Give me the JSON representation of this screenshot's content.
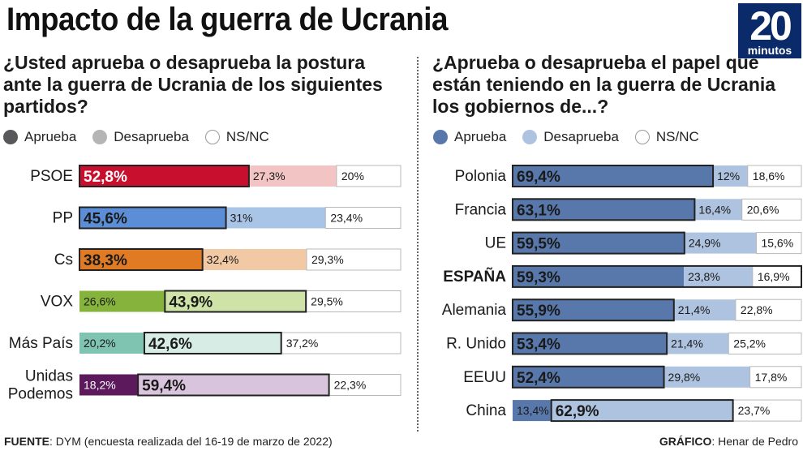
{
  "header": {
    "title": "Impacto de la guerra de Ucrania",
    "logo_number": "20",
    "logo_word": "minutos"
  },
  "colors": {
    "logo_bg": "#0a2a6a",
    "legend_left": [
      "#58585a",
      "#b5b5b5",
      "#ffffff"
    ],
    "legend_right": [
      "#5878ab",
      "#aec3e0",
      "#ffffff"
    ]
  },
  "chart_data": [
    {
      "type": "bar",
      "stacked": true,
      "orientation": "horizontal",
      "title": "¿Usted aprueba o desaprueba la postura ante la guerra de Ucrania de los siguientes partidos?",
      "legend": [
        "Aprueba",
        "Desaprueba",
        "NS/NC"
      ],
      "categories": [
        "PSOE",
        "PP",
        "Cs",
        "VOX",
        "Más País",
        "Unidas Podemos"
      ],
      "category_labels": [
        [
          "PSOE"
        ],
        [
          "PP"
        ],
        [
          "Cs"
        ],
        [
          "VOX"
        ],
        [
          "Más País"
        ],
        [
          "Unidas",
          "Podemos"
        ]
      ],
      "series": [
        {
          "name": "Aprueba",
          "values": [
            52.8,
            45.6,
            38.3,
            26.6,
            20.2,
            18.2
          ]
        },
        {
          "name": "Desaprueba",
          "values": [
            27.3,
            31,
            32.4,
            43.9,
            42.6,
            59.4
          ]
        },
        {
          "name": "NS/NC",
          "values": [
            20,
            23.4,
            29.3,
            29.5,
            37.2,
            22.3
          ]
        }
      ],
      "value_labels": [
        [
          "52,8%",
          "27,3%",
          "20%"
        ],
        [
          "45,6%",
          "31%",
          "23,4%"
        ],
        [
          "38,3%",
          "32,4%",
          "29,3%"
        ],
        [
          "26,6%",
          "43,9%",
          "29,5%"
        ],
        [
          "20,2%",
          "42,6%",
          "37,2%"
        ],
        [
          "18,2%",
          "59,4%",
          "22,3%"
        ]
      ],
      "highlight": [
        0,
        0,
        0,
        1,
        1,
        1
      ],
      "party_colors": [
        [
          "#c8102e",
          "#f2c4c4",
          "#ffffff"
        ],
        [
          "#5b8ed6",
          "#a8c4e6",
          "#ffffff"
        ],
        [
          "#e07b24",
          "#f2c9a5",
          "#ffffff"
        ],
        [
          "#86b33c",
          "#cfe3a8",
          "#ffffff"
        ],
        [
          "#7fc4b0",
          "#d6ece5",
          "#ffffff"
        ],
        [
          "#5c1a5c",
          "#d8c4dc",
          "#ffffff"
        ]
      ]
    },
    {
      "type": "bar",
      "stacked": true,
      "orientation": "horizontal",
      "title": "¿Aprueba o desaprueba el papel que están teniendo en la guerra de Ucrania los gobiernos de...?",
      "legend": [
        "Aprueba",
        "Desaprueba",
        "NS/NC"
      ],
      "categories": [
        "Polonia",
        "Francia",
        "UE",
        "ESPAÑA",
        "Alemania",
        "R. Unido",
        "EEUU",
        "China"
      ],
      "series": [
        {
          "name": "Aprueba",
          "values": [
            69.4,
            63.1,
            59.5,
            59.3,
            55.9,
            53.4,
            52.4,
            13.4
          ]
        },
        {
          "name": "Desaprueba",
          "values": [
            12,
            16.4,
            24.9,
            23.8,
            21.4,
            21.4,
            29.8,
            62.9
          ]
        },
        {
          "name": "NS/NC",
          "values": [
            18.6,
            20.6,
            15.6,
            16.9,
            22.8,
            25.2,
            17.8,
            23.7
          ]
        }
      ],
      "value_labels": [
        [
          "69,4%",
          "12%",
          "18,6%"
        ],
        [
          "63,1%",
          "16,4%",
          "20,6%"
        ],
        [
          "59,5%",
          "24,9%",
          "15,6%"
        ],
        [
          "59,3%",
          "23,8%",
          "16,9%"
        ],
        [
          "55,9%",
          "21,4%",
          "22,8%"
        ],
        [
          "53,4%",
          "21,4%",
          "25,2%"
        ],
        [
          "52,4%",
          "29,8%",
          "17,8%"
        ],
        [
          "13,4%",
          "62,9%",
          "23,7%"
        ]
      ],
      "highlight": [
        0,
        0,
        0,
        0,
        0,
        0,
        0,
        1
      ],
      "bold_category": "ESPAÑA",
      "series_colors": [
        "#5878ab",
        "#aec3e0",
        "#ffffff"
      ]
    }
  ],
  "footer": {
    "source_label": "FUENTE",
    "source_text": ": DYM (encuesta realizada del 16-19 de marzo de 2022)",
    "credit_label": "GRÁFICO",
    "credit_text": ": Henar de Pedro"
  }
}
